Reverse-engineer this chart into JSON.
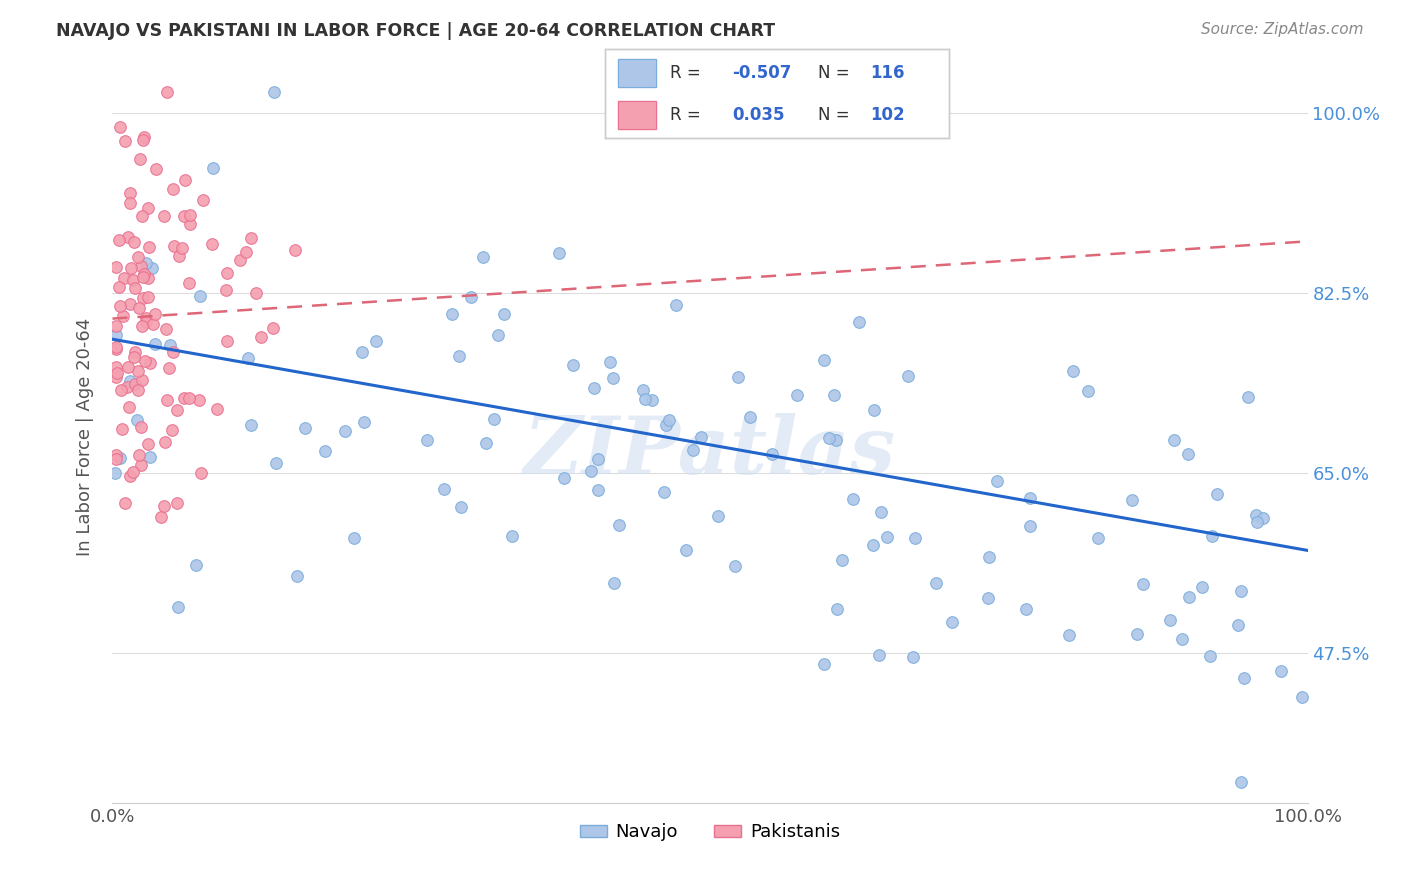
{
  "title": "NAVAJO VS PAKISTANI IN LABOR FORCE | AGE 20-64 CORRELATION CHART",
  "source": "Source: ZipAtlas.com",
  "ylabel_label": "In Labor Force | Age 20-64",
  "ytick_labels": [
    "47.5%",
    "65.0%",
    "82.5%",
    "100.0%"
  ],
  "ytick_values": [
    0.475,
    0.65,
    0.825,
    1.0
  ],
  "navajo_color": "#aec6e8",
  "navajo_edge_color": "#7aacdc",
  "pakistani_color": "#f4a0b0",
  "pakistani_edge_color": "#e87090",
  "navajo_line_color": "#2266cc",
  "pakistani_line_color": "#dd6677",
  "navajo_line_x0": 0.0,
  "navajo_line_y0": 0.78,
  "navajo_line_x1": 1.0,
  "navajo_line_y1": 0.575,
  "pak_line_x0": 0.0,
  "pak_line_y0": 0.8,
  "pak_line_x1": 1.0,
  "pak_line_y1": 0.875,
  "ylim_min": 0.33,
  "ylim_max": 1.04,
  "xlim_min": 0.0,
  "xlim_max": 1.0,
  "watermark": "ZIPatlas",
  "navajo_seed": 12,
  "pakistani_seed": 7,
  "n_navajo": 116,
  "n_pak": 102,
  "navajo_intercept": 0.78,
  "navajo_slope": -0.205,
  "navajo_noise": 0.095,
  "pak_intercept": 0.8,
  "pak_slope": 0.075,
  "pak_noise": 0.1
}
